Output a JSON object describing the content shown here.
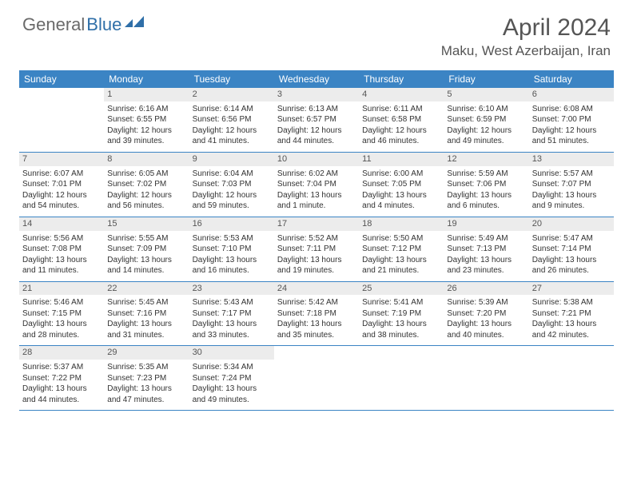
{
  "logo": {
    "text1": "General",
    "text2": "Blue"
  },
  "title": "April 2024",
  "location": "Maku, West Azerbaijan, Iran",
  "colors": {
    "header_bg": "#3b84c4",
    "header_text": "#ffffff",
    "daynum_bg": "#ececec",
    "daynum_text": "#555555",
    "border": "#3b84c4",
    "logo_gray": "#6a6a6a",
    "logo_blue": "#2f6fa8",
    "body_text": "#333333"
  },
  "day_names": [
    "Sunday",
    "Monday",
    "Tuesday",
    "Wednesday",
    "Thursday",
    "Friday",
    "Saturday"
  ],
  "weeks": [
    [
      {
        "n": "",
        "sunrise": "",
        "sunset": "",
        "daylight": ""
      },
      {
        "n": "1",
        "sunrise": "Sunrise: 6:16 AM",
        "sunset": "Sunset: 6:55 PM",
        "daylight": "Daylight: 12 hours and 39 minutes."
      },
      {
        "n": "2",
        "sunrise": "Sunrise: 6:14 AM",
        "sunset": "Sunset: 6:56 PM",
        "daylight": "Daylight: 12 hours and 41 minutes."
      },
      {
        "n": "3",
        "sunrise": "Sunrise: 6:13 AM",
        "sunset": "Sunset: 6:57 PM",
        "daylight": "Daylight: 12 hours and 44 minutes."
      },
      {
        "n": "4",
        "sunrise": "Sunrise: 6:11 AM",
        "sunset": "Sunset: 6:58 PM",
        "daylight": "Daylight: 12 hours and 46 minutes."
      },
      {
        "n": "5",
        "sunrise": "Sunrise: 6:10 AM",
        "sunset": "Sunset: 6:59 PM",
        "daylight": "Daylight: 12 hours and 49 minutes."
      },
      {
        "n": "6",
        "sunrise": "Sunrise: 6:08 AM",
        "sunset": "Sunset: 7:00 PM",
        "daylight": "Daylight: 12 hours and 51 minutes."
      }
    ],
    [
      {
        "n": "7",
        "sunrise": "Sunrise: 6:07 AM",
        "sunset": "Sunset: 7:01 PM",
        "daylight": "Daylight: 12 hours and 54 minutes."
      },
      {
        "n": "8",
        "sunrise": "Sunrise: 6:05 AM",
        "sunset": "Sunset: 7:02 PM",
        "daylight": "Daylight: 12 hours and 56 minutes."
      },
      {
        "n": "9",
        "sunrise": "Sunrise: 6:04 AM",
        "sunset": "Sunset: 7:03 PM",
        "daylight": "Daylight: 12 hours and 59 minutes."
      },
      {
        "n": "10",
        "sunrise": "Sunrise: 6:02 AM",
        "sunset": "Sunset: 7:04 PM",
        "daylight": "Daylight: 13 hours and 1 minute."
      },
      {
        "n": "11",
        "sunrise": "Sunrise: 6:00 AM",
        "sunset": "Sunset: 7:05 PM",
        "daylight": "Daylight: 13 hours and 4 minutes."
      },
      {
        "n": "12",
        "sunrise": "Sunrise: 5:59 AM",
        "sunset": "Sunset: 7:06 PM",
        "daylight": "Daylight: 13 hours and 6 minutes."
      },
      {
        "n": "13",
        "sunrise": "Sunrise: 5:57 AM",
        "sunset": "Sunset: 7:07 PM",
        "daylight": "Daylight: 13 hours and 9 minutes."
      }
    ],
    [
      {
        "n": "14",
        "sunrise": "Sunrise: 5:56 AM",
        "sunset": "Sunset: 7:08 PM",
        "daylight": "Daylight: 13 hours and 11 minutes."
      },
      {
        "n": "15",
        "sunrise": "Sunrise: 5:55 AM",
        "sunset": "Sunset: 7:09 PM",
        "daylight": "Daylight: 13 hours and 14 minutes."
      },
      {
        "n": "16",
        "sunrise": "Sunrise: 5:53 AM",
        "sunset": "Sunset: 7:10 PM",
        "daylight": "Daylight: 13 hours and 16 minutes."
      },
      {
        "n": "17",
        "sunrise": "Sunrise: 5:52 AM",
        "sunset": "Sunset: 7:11 PM",
        "daylight": "Daylight: 13 hours and 19 minutes."
      },
      {
        "n": "18",
        "sunrise": "Sunrise: 5:50 AM",
        "sunset": "Sunset: 7:12 PM",
        "daylight": "Daylight: 13 hours and 21 minutes."
      },
      {
        "n": "19",
        "sunrise": "Sunrise: 5:49 AM",
        "sunset": "Sunset: 7:13 PM",
        "daylight": "Daylight: 13 hours and 23 minutes."
      },
      {
        "n": "20",
        "sunrise": "Sunrise: 5:47 AM",
        "sunset": "Sunset: 7:14 PM",
        "daylight": "Daylight: 13 hours and 26 minutes."
      }
    ],
    [
      {
        "n": "21",
        "sunrise": "Sunrise: 5:46 AM",
        "sunset": "Sunset: 7:15 PM",
        "daylight": "Daylight: 13 hours and 28 minutes."
      },
      {
        "n": "22",
        "sunrise": "Sunrise: 5:45 AM",
        "sunset": "Sunset: 7:16 PM",
        "daylight": "Daylight: 13 hours and 31 minutes."
      },
      {
        "n": "23",
        "sunrise": "Sunrise: 5:43 AM",
        "sunset": "Sunset: 7:17 PM",
        "daylight": "Daylight: 13 hours and 33 minutes."
      },
      {
        "n": "24",
        "sunrise": "Sunrise: 5:42 AM",
        "sunset": "Sunset: 7:18 PM",
        "daylight": "Daylight: 13 hours and 35 minutes."
      },
      {
        "n": "25",
        "sunrise": "Sunrise: 5:41 AM",
        "sunset": "Sunset: 7:19 PM",
        "daylight": "Daylight: 13 hours and 38 minutes."
      },
      {
        "n": "26",
        "sunrise": "Sunrise: 5:39 AM",
        "sunset": "Sunset: 7:20 PM",
        "daylight": "Daylight: 13 hours and 40 minutes."
      },
      {
        "n": "27",
        "sunrise": "Sunrise: 5:38 AM",
        "sunset": "Sunset: 7:21 PM",
        "daylight": "Daylight: 13 hours and 42 minutes."
      }
    ],
    [
      {
        "n": "28",
        "sunrise": "Sunrise: 5:37 AM",
        "sunset": "Sunset: 7:22 PM",
        "daylight": "Daylight: 13 hours and 44 minutes."
      },
      {
        "n": "29",
        "sunrise": "Sunrise: 5:35 AM",
        "sunset": "Sunset: 7:23 PM",
        "daylight": "Daylight: 13 hours and 47 minutes."
      },
      {
        "n": "30",
        "sunrise": "Sunrise: 5:34 AM",
        "sunset": "Sunset: 7:24 PM",
        "daylight": "Daylight: 13 hours and 49 minutes."
      },
      {
        "n": "",
        "sunrise": "",
        "sunset": "",
        "daylight": ""
      },
      {
        "n": "",
        "sunrise": "",
        "sunset": "",
        "daylight": ""
      },
      {
        "n": "",
        "sunrise": "",
        "sunset": "",
        "daylight": ""
      },
      {
        "n": "",
        "sunrise": "",
        "sunset": "",
        "daylight": ""
      }
    ]
  ]
}
